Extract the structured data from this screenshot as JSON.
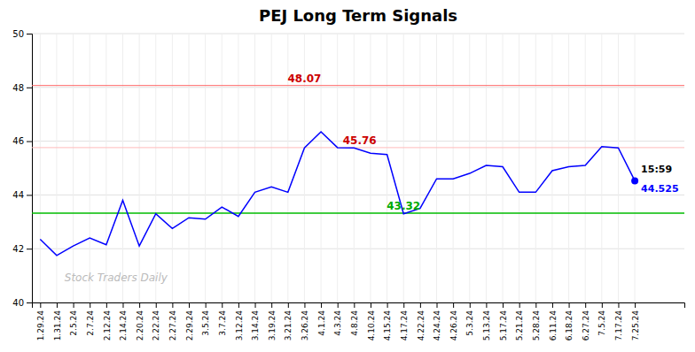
{
  "chart_data": {
    "type": "line",
    "title": "PEJ Long Term Signals",
    "categories": [
      "1.29.24",
      "1.31.24",
      "2.5.24",
      "2.7.24",
      "2.12.24",
      "2.14.24",
      "2.20.24",
      "2.22.24",
      "2.27.24",
      "2.29.24",
      "3.5.24",
      "3.7.24",
      "3.12.24",
      "3.14.24",
      "3.19.24",
      "3.21.24",
      "3.26.24",
      "4.1.24",
      "4.3.24",
      "4.8.24",
      "4.10.24",
      "4.15.24",
      "4.17.24",
      "4.22.24",
      "4.24.24",
      "4.26.24",
      "5.3.24",
      "5.13.24",
      "5.17.24",
      "5.21.24",
      "5.28.24",
      "6.11.24",
      "6.18.24",
      "6.27.24",
      "7.5.24",
      "7.17.24",
      "7.25.24"
    ],
    "values": [
      42.35,
      41.75,
      42.1,
      42.4,
      42.15,
      43.8,
      42.1,
      43.3,
      42.75,
      43.15,
      43.1,
      43.55,
      43.2,
      44.1,
      44.3,
      44.1,
      45.75,
      46.35,
      45.76,
      45.75,
      45.55,
      45.5,
      43.3,
      43.5,
      44.6,
      44.6,
      44.8,
      45.1,
      45.05,
      44.1,
      44.1,
      44.9,
      45.05,
      45.1,
      45.8,
      45.75,
      44.525
    ],
    "color": "#0000ff",
    "ylim": [
      40,
      50
    ],
    "yticks": [
      40,
      42,
      44,
      46,
      48,
      50
    ],
    "grid": true,
    "hlines": [
      {
        "value": 43.32,
        "color": "#00bb00"
      },
      {
        "value": 48.07,
        "color": "#ff6666"
      },
      {
        "value": 45.76,
        "color": "#ffbbbb"
      }
    ],
    "annotations": [
      {
        "text": "48.07",
        "x": "3.26.24",
        "y": 48.07,
        "color": "#cc0000"
      },
      {
        "text": "43.32",
        "x": "4.17.24",
        "y": 43.32,
        "color": "#00aa00"
      },
      {
        "text": "45.76",
        "x": "4.3.24",
        "y": 45.76,
        "color": "#cc0000"
      }
    ],
    "current": {
      "x": "7.25.24",
      "time_label": "15:59",
      "value_label": "44.525",
      "color": "#0000ff"
    },
    "watermark": "Stock Traders Daily"
  }
}
